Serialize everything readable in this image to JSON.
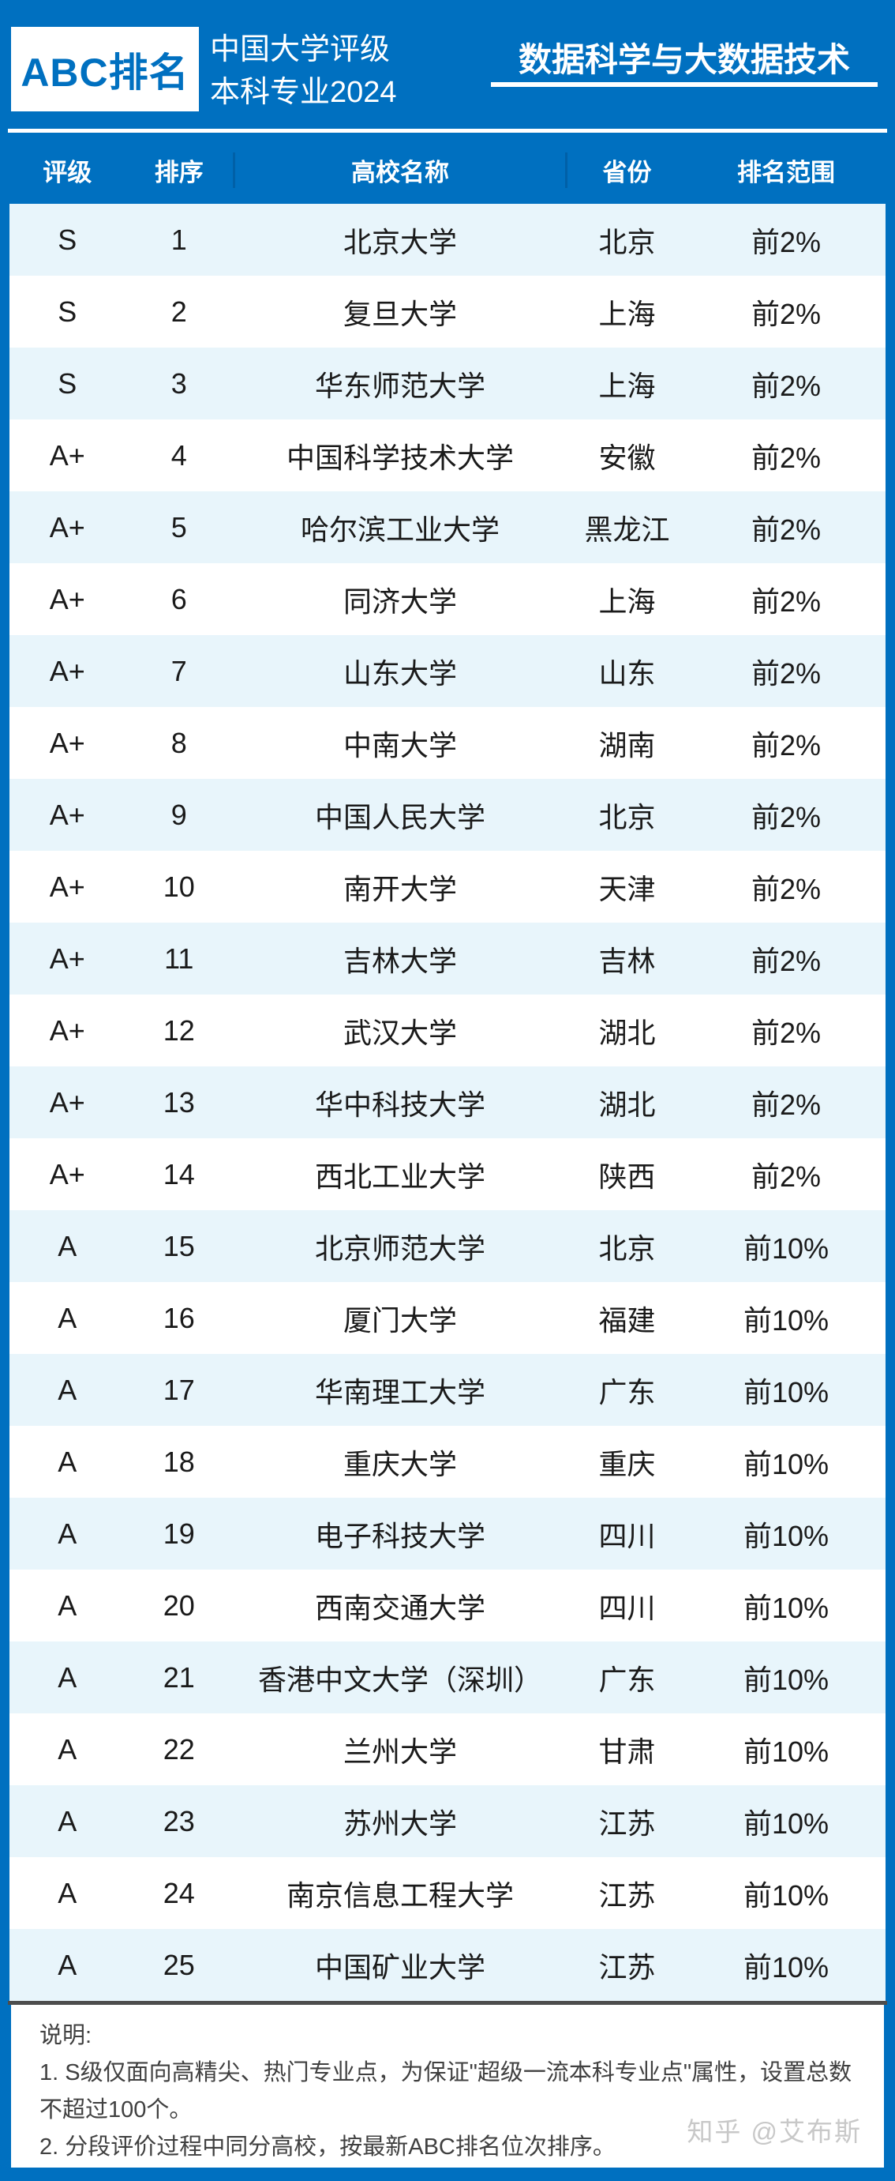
{
  "header": {
    "logo_text": "ABC排名",
    "subtitle_line1": "中国大学评级",
    "subtitle_line2": "本科专业2024"
  },
  "chart_data": {
    "type": "table",
    "title": "数据科学与大数据技术",
    "columns": [
      "评级",
      "排序",
      "高校名称",
      "省份",
      "排名范围"
    ],
    "rows": [
      [
        "S",
        "1",
        "北京大学",
        "北京",
        "前2%"
      ],
      [
        "S",
        "2",
        "复旦大学",
        "上海",
        "前2%"
      ],
      [
        "S",
        "3",
        "华东师范大学",
        "上海",
        "前2%"
      ],
      [
        "A+",
        "4",
        "中国科学技术大学",
        "安徽",
        "前2%"
      ],
      [
        "A+",
        "5",
        "哈尔滨工业大学",
        "黑龙江",
        "前2%"
      ],
      [
        "A+",
        "6",
        "同济大学",
        "上海",
        "前2%"
      ],
      [
        "A+",
        "7",
        "山东大学",
        "山东",
        "前2%"
      ],
      [
        "A+",
        "8",
        "中南大学",
        "湖南",
        "前2%"
      ],
      [
        "A+",
        "9",
        "中国人民大学",
        "北京",
        "前2%"
      ],
      [
        "A+",
        "10",
        "南开大学",
        "天津",
        "前2%"
      ],
      [
        "A+",
        "11",
        "吉林大学",
        "吉林",
        "前2%"
      ],
      [
        "A+",
        "12",
        "武汉大学",
        "湖北",
        "前2%"
      ],
      [
        "A+",
        "13",
        "华中科技大学",
        "湖北",
        "前2%"
      ],
      [
        "A+",
        "14",
        "西北工业大学",
        "陕西",
        "前2%"
      ],
      [
        "A",
        "15",
        "北京师范大学",
        "北京",
        "前10%"
      ],
      [
        "A",
        "16",
        "厦门大学",
        "福建",
        "前10%"
      ],
      [
        "A",
        "17",
        "华南理工大学",
        "广东",
        "前10%"
      ],
      [
        "A",
        "18",
        "重庆大学",
        "重庆",
        "前10%"
      ],
      [
        "A",
        "19",
        "电子科技大学",
        "四川",
        "前10%"
      ],
      [
        "A",
        "20",
        "西南交通大学",
        "四川",
        "前10%"
      ],
      [
        "A",
        "21",
        "香港中文大学（深圳）",
        "广东",
        "前10%"
      ],
      [
        "A",
        "22",
        "兰州大学",
        "甘肃",
        "前10%"
      ],
      [
        "A",
        "23",
        "苏州大学",
        "江苏",
        "前10%"
      ],
      [
        "A",
        "24",
        "南京信息工程大学",
        "江苏",
        "前10%"
      ],
      [
        "A",
        "25",
        "中国矿业大学",
        "江苏",
        "前10%"
      ]
    ]
  },
  "footer": {
    "notes_title": "说明:",
    "note1": "1. S级仅面向高精尖、热门专业点，为保证\"超级一流本科专业点\"属性，设置总数不超过100个。",
    "note2": "2. 分段评价过程中同分高校，按最新ABC排名位次排序。",
    "watermark": "知乎 @艾布斯"
  },
  "colors": {
    "primary_blue": "#0070C0",
    "row_alt_blue": "#E8F5FB",
    "row_white": "#FFFFFF",
    "divider_gray": "#4D4D4D",
    "watermark_gray": "#C8C8C8"
  }
}
